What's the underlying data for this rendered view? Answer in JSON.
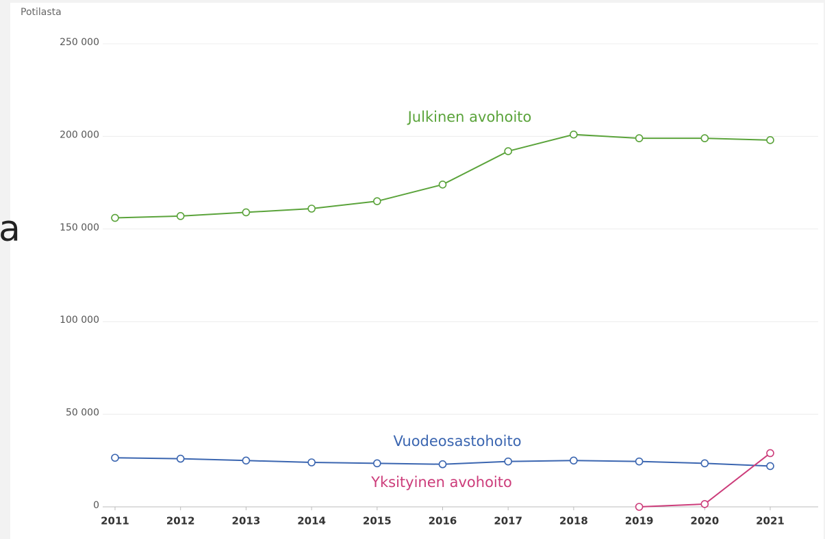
{
  "fragment": "a",
  "chart_data": {
    "type": "line",
    "y_label": "Potilasta",
    "categories": [
      "2011",
      "2012",
      "2013",
      "2014",
      "2015",
      "2016",
      "2017",
      "2018",
      "2019",
      "2020",
      "2021"
    ],
    "series": [
      {
        "name": "Julkinen avohoito",
        "color": "#5aa33a",
        "values": [
          156000,
          157000,
          159000,
          161000,
          165000,
          174000,
          192000,
          201000,
          199000,
          199000,
          198000
        ]
      },
      {
        "name": "Vuodeosastohoito",
        "color": "#3a65b0",
        "values": [
          26500,
          26000,
          25000,
          24000,
          23500,
          23000,
          24500,
          25000,
          24500,
          23500,
          22000
        ]
      },
      {
        "name": "Yksityinen avohoito",
        "color": "#cc3c7a",
        "values": [
          null,
          null,
          null,
          null,
          null,
          null,
          null,
          null,
          0,
          1500,
          29000
        ]
      }
    ],
    "ylim": [
      0,
      250000
    ],
    "yticks": [
      0,
      {
        "value": 50000,
        "label": "50 000"
      },
      {
        "value": 100000,
        "label": "100 000"
      },
      {
        "value": 150000,
        "label": "150 000"
      },
      {
        "value": 200000,
        "label": "200 000"
      },
      {
        "value": 250000,
        "label": "250 000"
      }
    ],
    "grid": true
  }
}
